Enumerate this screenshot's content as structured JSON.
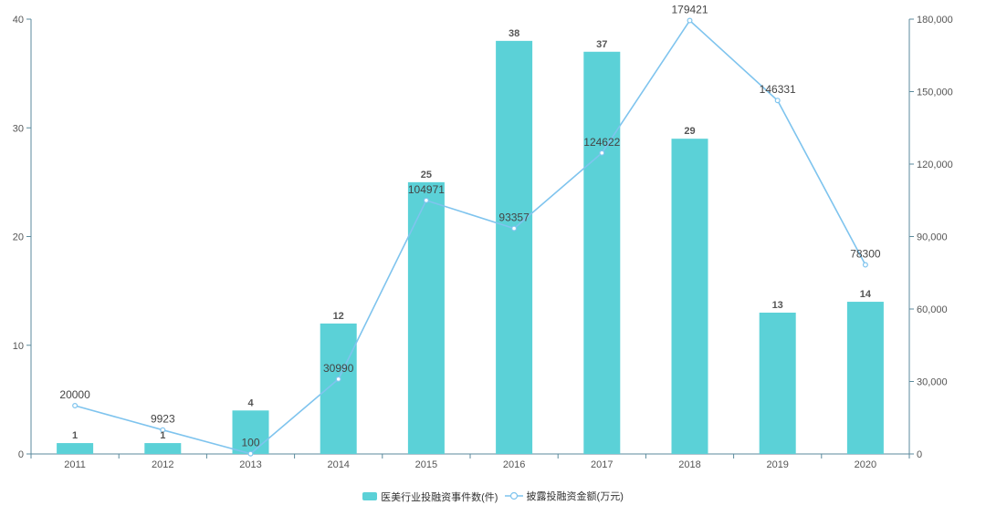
{
  "chart_data": {
    "type": "bar",
    "categories": [
      "2011",
      "2012",
      "2013",
      "2014",
      "2015",
      "2016",
      "2017",
      "2018",
      "2019",
      "2020"
    ],
    "series": [
      {
        "name": "医美行业投融资事件数(件)",
        "type": "bar",
        "axis": "left",
        "values": [
          1,
          1,
          4,
          12,
          25,
          38,
          37,
          29,
          13,
          14
        ],
        "color": "#5bd1d7"
      },
      {
        "name": "披露投融资金额(万元)",
        "type": "line",
        "axis": "right",
        "values": [
          20000,
          9923,
          100,
          30990,
          104971,
          93357,
          124622,
          179421,
          146331,
          78300
        ],
        "color": "#7fc4ee"
      }
    ],
    "y_left": {
      "ylim": [
        0,
        40
      ],
      "ticks": [
        "0",
        "10",
        "20",
        "30",
        "40"
      ]
    },
    "y_right": {
      "ylim": [
        0,
        180000
      ],
      "ticks": [
        "0",
        "30,000",
        "60,000",
        "90,000",
        "120,000",
        "150,000",
        "180,000"
      ]
    },
    "grid": false,
    "legend": "bottom-center",
    "axis_color": "#5b8a9c"
  }
}
